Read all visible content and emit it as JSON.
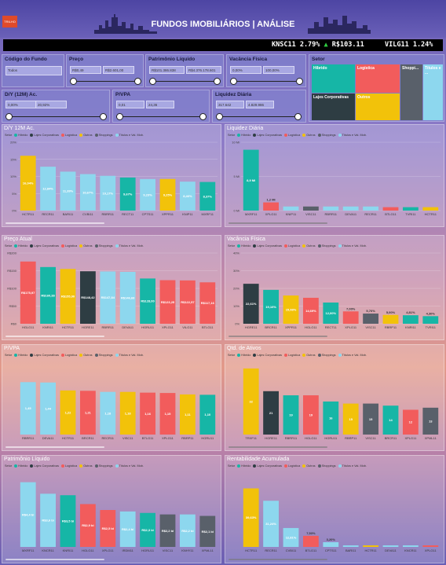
{
  "header": {
    "title": "FUNDOS IMOBILIÁRIOS | ANÁLISE",
    "logo_text": "TRILHO"
  },
  "ticker": [
    {
      "text": "KNSC11  2.79%",
      "arrow": "▲",
      "price": "R$103.11"
    },
    {
      "text": "VILG11  1.24%"
    }
  ],
  "filters": {
    "codigo": {
      "label": "Código do Fundo",
      "placeholder": "Todos"
    },
    "preco": {
      "label": "Preço",
      "min": "R$0,49",
      "max": "R$2.601,00"
    },
    "patrimonio": {
      "label": "Patrimônio Líquido",
      "min": "R$101.386.838",
      "max": "R$4.376.178.601"
    },
    "vacancia": {
      "label": "Vacância Física",
      "min": "0,00%",
      "max": "100,00%"
    },
    "dy": {
      "label": "D/Y (12M) Ac.",
      "min": "0,00%",
      "max": "20,92%"
    },
    "pvpa": {
      "label": "P/VPA",
      "min": "0,01",
      "max": "24,36"
    },
    "liquidez": {
      "label": "Liquidez Diária",
      "min": "317.642",
      "max": "4.829.986"
    },
    "setor": {
      "label": "Setor",
      "tiles": [
        {
          "name": "Híbrido",
          "color": "#16b6a6"
        },
        {
          "name": "Logística",
          "color": "#f25c5c"
        },
        {
          "name": "Shoppi...",
          "color": "#59606a"
        },
        {
          "name": "Títulos e ...",
          "color": "#8dd7ee"
        },
        {
          "name": "Lajes Corporativas",
          "color": "#2e3d43"
        },
        {
          "name": "Outros",
          "color": "#f2c20a"
        }
      ]
    }
  },
  "legend": {
    "title": "Setor",
    "items": [
      {
        "name": "Híbrido",
        "color": "#16b6a6"
      },
      {
        "name": "Lajes Corporativas",
        "color": "#2e3d43"
      },
      {
        "name": "Logística",
        "color": "#f25c5c"
      },
      {
        "name": "Outros",
        "color": "#f2c20a"
      },
      {
        "name": "Shoppings",
        "color": "#59606a"
      },
      {
        "name": "Títulos e Val. Mob.",
        "color": "#8dd7ee"
      }
    ]
  },
  "chart_data": [
    {
      "id": "dy",
      "title": "D/Y 12M Ac.",
      "type": "bar",
      "ylim": [
        0,
        20
      ],
      "yticks": [
        "0%",
        "5%",
        "10%",
        "15%",
        "20%"
      ],
      "categories": [
        "HCTR11",
        "RECR11",
        "BARI11",
        "CVBI11",
        "RBRR11",
        "RECT11",
        "CPTS11",
        "XPPR11",
        "KNIP11",
        "MXRF11"
      ],
      "values": [
        16.04,
        12.84,
        11.39,
        10.67,
        10.17,
        9.67,
        9.23,
        9.25,
        8.46,
        8.37
      ],
      "labels": [
        "16,04%",
        "12,84%",
        "11,39%",
        "10,67%",
        "10,17%",
        "9,67%",
        "9,23%",
        "9,25%",
        "8,46%",
        "8,37%"
      ],
      "colors": [
        "#f2c20a",
        "#8dd7ee",
        "#8dd7ee",
        "#8dd7ee",
        "#8dd7ee",
        "#16b6a6",
        "#8dd7ee",
        "#f2c20a",
        "#8dd7ee",
        "#16b6a6"
      ]
    },
    {
      "id": "liq",
      "title": "Liquidez Diária",
      "type": "bar",
      "ylim": [
        0,
        10
      ],
      "yticks": [
        "0 Mi",
        "5 Mi",
        "10 Mi"
      ],
      "categories": [
        "MXRF11",
        "XPLG11",
        "KNIP11",
        "VISC11",
        "RBRR11",
        "DEVA11",
        "RECR11",
        "BTLG11",
        "TVRI11",
        "HCTR11"
      ],
      "values": [
        8.9,
        1.2,
        0.6,
        0.6,
        0.6,
        0.6,
        0.6,
        0.5,
        0.5,
        0.5
      ],
      "labels": [
        "8,9 Mi",
        "1,2 Mi",
        "",
        "",
        "",
        "",
        "",
        "",
        "",
        ""
      ],
      "colors": [
        "#16b6a6",
        "#f25c5c",
        "#8dd7ee",
        "#59606a",
        "#8dd7ee",
        "#8dd7ee",
        "#8dd7ee",
        "#f25c5c",
        "#16b6a6",
        "#f2c20a"
      ]
    },
    {
      "id": "preco",
      "title": "Preço Atual",
      "type": "bar",
      "ylim": [
        0,
        200
      ],
      "yticks": [
        "R$0",
        "R$50",
        "R$100",
        "R$150",
        "R$200"
      ],
      "categories": [
        "HGLG11",
        "KNRI11",
        "HCTR11",
        "HGRE11",
        "RBRR11",
        "DEVA11",
        "HGRU11",
        "XPLG11",
        "VILG11",
        "BTLG11"
      ],
      "values": [
        175.97,
        160.38,
        155.0,
        148.42,
        147.84,
        146.68,
        128.0,
        123.25,
        122.57,
        117.16
      ],
      "labels": [
        "R$175,97",
        "R$160,38",
        "R$155,00",
        "R$148,42",
        "R$147,84",
        "R$146,68",
        "R$128,00",
        "R$123,25",
        "R$122,57",
        "R$117,16"
      ],
      "colors": [
        "#f25c5c",
        "#16b6a6",
        "#f2c20a",
        "#2e3d43",
        "#8dd7ee",
        "#8dd7ee",
        "#16b6a6",
        "#f25c5c",
        "#f25c5c",
        "#f25c5c"
      ]
    },
    {
      "id": "vac",
      "title": "Vacância Física",
      "type": "bar",
      "ylim": [
        0,
        40
      ],
      "yticks": [
        "0%",
        "10%",
        "20%",
        "30%",
        "40%"
      ],
      "categories": [
        "HGRE11",
        "BRCR11",
        "XPPR11",
        "HGLG11",
        "RECT11",
        "XPLG11",
        "VISC11",
        "RBRP11",
        "KNRI11",
        "TVRI11"
      ],
      "values": [
        22.61,
        19.16,
        15.98,
        14.69,
        12.0,
        7.0,
        5.76,
        5.0,
        4.81,
        4.3
      ],
      "labels": [
        "22,61%",
        "19,16%",
        "15,98%",
        "14,69%",
        "12,00%",
        "7,00%",
        "5,76%",
        "5,00%",
        "4,81%",
        "4,30%"
      ],
      "colors": [
        "#2e3d43",
        "#16b6a6",
        "#f2c20a",
        "#f25c5c",
        "#16b6a6",
        "#f25c5c",
        "#59606a",
        "#f2c20a",
        "#16b6a6",
        "#16b6a6"
      ]
    },
    {
      "id": "pvpa",
      "title": "P/VPA",
      "type": "bar",
      "ylim": [
        0,
        2
      ],
      "yticks": [],
      "categories": [
        "RBRR11",
        "DEVA11",
        "HCTR11",
        "BRCR11",
        "RECR11",
        "VISC11",
        "BTLG11",
        "XPLG11",
        "RBRP11",
        "HGRU11"
      ],
      "values": [
        1.45,
        1.44,
        1.22,
        1.21,
        1.18,
        1.18,
        1.16,
        1.15,
        1.11,
        1.1
      ],
      "labels": [
        "1,45",
        "1,44",
        "1,22",
        "1,21",
        "1,18",
        "1,18",
        "1,16",
        "1,15",
        "1,11",
        "1,10"
      ],
      "colors": [
        "#8dd7ee",
        "#8dd7ee",
        "#f2c20a",
        "#f25c5c",
        "#8dd7ee",
        "#f2c20a",
        "#f25c5c",
        "#f25c5c",
        "#f2c20a",
        "#16b6a6"
      ]
    },
    {
      "id": "ativos",
      "title": "Qtd. de Ativos",
      "type": "bar",
      "ylim": [
        0,
        35
      ],
      "yticks": [],
      "categories": [
        "TRXF11",
        "HGRE11",
        "RBRR11",
        "HGLG11",
        "HGRU11",
        "RBRP11",
        "VISC11",
        "BRCR11",
        "XPLG11",
        "XPML11"
      ],
      "values": [
        32,
        21,
        19,
        19,
        16,
        15,
        15,
        14,
        12,
        13
      ],
      "labels": [
        "32",
        "21",
        "19",
        "19",
        "16",
        "15",
        "15",
        "14",
        "12",
        "13"
      ],
      "colors": [
        "#f2c20a",
        "#2e3d43",
        "#16b6a6",
        "#f25c5c",
        "#16b6a6",
        "#f2c20a",
        "#59606a",
        "#16b6a6",
        "#f25c5c",
        "#59606a"
      ]
    },
    {
      "id": "pl",
      "title": "Patrimônio Líquido",
      "type": "bar",
      "ylim": [
        0,
        5
      ],
      "yticks": [],
      "categories": [
        "MXRF11",
        "KNCR11",
        "KNRI11",
        "HGLG11",
        "XPLG11",
        "IRDM11",
        "HGRU11",
        "VISC11",
        "KNHY11",
        "XPML11"
      ],
      "values": [
        4.38,
        3.6,
        3.5,
        2.9,
        2.5,
        2.4,
        2.3,
        2.2,
        2.2,
        2.1
      ],
      "labels": [
        "R$4,4 bi",
        "R$3,6 bi",
        "R$3,5 bi",
        "R$2,9 bi",
        "R$2,5 bi",
        "R$2,4 bi",
        "R$2,3 bi",
        "R$2,2 bi",
        "R$2,2 bi",
        "R$2,1 bi"
      ],
      "colors": [
        "#8dd7ee",
        "#8dd7ee",
        "#16b6a6",
        "#f25c5c",
        "#f25c5c",
        "#8dd7ee",
        "#16b6a6",
        "#59606a",
        "#8dd7ee",
        "#59606a"
      ]
    },
    {
      "id": "rent",
      "title": "Rentabilidade Acumulada",
      "type": "bar",
      "ylim": [
        0,
        50
      ],
      "yticks": [],
      "categories": [
        "HCTR11",
        "RECR11",
        "CVBI11",
        "BTLG11",
        "CPTS11",
        "BARI11",
        "HCTR11",
        "DEVA11",
        "KNCR11",
        "XPLG11"
      ],
      "values": [
        39.63,
        31.24,
        12.81,
        7.53,
        3.2,
        0.8,
        0.8,
        0.6,
        0.6,
        0.5
      ],
      "labels": [
        "39,63%",
        "31,24%",
        "12,81%",
        "7,53%",
        "3,20%",
        "",
        "",
        "",
        "",
        ""
      ],
      "colors": [
        "#f2c20a",
        "#8dd7ee",
        "#8dd7ee",
        "#f25c5c",
        "#8dd7ee",
        "#8dd7ee",
        "#f2c20a",
        "#8dd7ee",
        "#8dd7ee",
        "#f25c5c"
      ]
    }
  ]
}
